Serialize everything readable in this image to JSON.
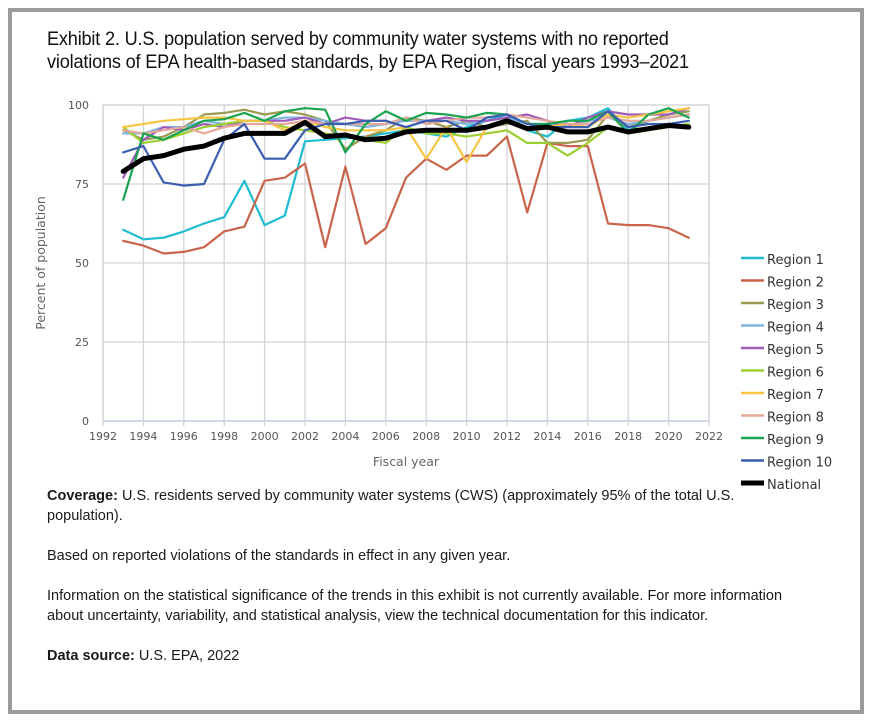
{
  "figure": {
    "title_line1": "Exhibit 2. U.S. population served by community water systems with no reported",
    "title_line2": "violations of EPA health-based standards, by EPA Region, fiscal years 1993–2021"
  },
  "notes": {
    "coverage_label": "Coverage:",
    "coverage_text": " U.S. residents served by community water systems (CWS) (approximately 95% of the total U.S. population).",
    "basis_text": "Based on reported violations of the standards in effect in any given year.",
    "significance_text": "Information on the statistical significance of the trends in this exhibit is not currently available. For more information about uncertainty, variability, and statistical analysis, view the technical documentation for this indicator.",
    "source_label": "Data source:",
    "source_text": " U.S. EPA, 2022"
  },
  "chart_data": {
    "type": "line",
    "title": "Exhibit 2. U.S. population served by community water systems with no reported violations of EPA health-based standards, by EPA Region, fiscal years 1993–2021",
    "xlabel": "Fiscal year",
    "ylabel": "Percent of population",
    "xlim": [
      1992,
      2022
    ],
    "ylim": [
      0,
      100
    ],
    "xticks": [
      1992,
      1994,
      1996,
      1998,
      2000,
      2002,
      2004,
      2006,
      2008,
      2010,
      2012,
      2014,
      2016,
      2018,
      2020,
      2022
    ],
    "yticks": [
      0,
      25,
      50,
      75,
      100
    ],
    "grid": true,
    "legend_position": "right",
    "x": [
      1993,
      1994,
      1995,
      1996,
      1997,
      1998,
      1999,
      2000,
      2001,
      2002,
      2003,
      2004,
      2005,
      2006,
      2007,
      2008,
      2009,
      2010,
      2011,
      2012,
      2013,
      2014,
      2015,
      2016,
      2017,
      2018,
      2019,
      2020,
      2021
    ],
    "series": [
      {
        "name": "Region 1",
        "color": "#1fbcd2",
        "values": [
          60.5,
          57.5,
          58,
          60,
          62.5,
          64.5,
          76,
          62,
          65,
          88.5,
          89,
          89.5,
          90,
          91,
          92,
          91,
          90,
          93,
          95,
          97,
          92,
          90,
          95,
          96,
          99,
          92,
          95,
          96,
          97
        ]
      },
      {
        "name": "Region 2",
        "color": "#c8644a",
        "values": [
          57,
          55.5,
          53,
          53.5,
          55,
          60,
          61.5,
          76,
          77,
          81.5,
          55,
          80.5,
          56,
          61,
          77,
          83,
          79.5,
          84,
          84,
          90,
          66,
          88,
          87,
          87,
          62.5,
          62,
          62,
          61,
          58
        ]
      },
      {
        "name": "Region 3",
        "color": "#9c9a50",
        "values": [
          92,
          89,
          90,
          93,
          97,
          97.5,
          98.5,
          97,
          98,
          97,
          95,
          86,
          90,
          92,
          96,
          95,
          93,
          95,
          93,
          94,
          95,
          88,
          88,
          89,
          97,
          93,
          95,
          97,
          98
        ]
      },
      {
        "name": "Region 4",
        "color": "#7fb5e2",
        "values": [
          91,
          91,
          93,
          93,
          95,
          94,
          95,
          95,
          96,
          96,
          95,
          94,
          93,
          94,
          95,
          95,
          95,
          94,
          95,
          96,
          94,
          94,
          93,
          95,
          96,
          94,
          95,
          96,
          97
        ]
      },
      {
        "name": "Region 5",
        "color": "#a05cb8",
        "values": [
          77,
          89,
          93,
          92,
          94,
          93,
          95,
          95,
          95,
          96,
          94,
          96,
          95,
          95,
          93,
          95,
          96,
          95,
          95,
          96,
          97,
          95,
          93,
          96,
          98,
          97,
          97,
          97,
          99
        ]
      },
      {
        "name": "Region 6",
        "color": "#9ccf2f",
        "values": [
          93,
          88,
          89,
          91,
          93,
          94,
          95,
          95,
          93,
          92,
          91,
          90,
          89,
          88,
          93,
          91,
          91,
          90,
          91,
          92,
          88,
          88,
          84,
          88,
          93,
          91,
          92,
          93,
          94
        ]
      },
      {
        "name": "Region 7",
        "color": "#f7c542",
        "values": [
          93,
          94,
          95,
          95.5,
          96,
          96,
          95,
          95,
          92,
          95,
          93,
          92,
          92,
          92,
          93,
          83,
          93,
          82,
          93,
          95,
          93,
          93,
          94,
          93,
          97,
          96,
          97,
          98,
          99
        ]
      },
      {
        "name": "Region 8",
        "color": "#e4a898",
        "values": [
          92,
          91,
          92,
          93,
          91,
          93,
          94,
          94,
          94,
          95,
          94,
          94,
          94,
          94,
          96,
          94,
          95,
          96,
          96,
          97,
          96,
          95,
          94,
          94,
          96,
          95,
          95,
          96,
          97
        ]
      },
      {
        "name": "Region 9",
        "color": "#1aa350",
        "values": [
          70,
          91,
          89,
          92,
          95,
          95.5,
          97.5,
          95,
          98,
          99,
          98.5,
          85,
          94,
          98,
          95,
          97.5,
          97,
          96,
          97.5,
          97,
          94,
          94,
          95,
          95,
          98,
          91,
          97,
          99,
          96
        ]
      },
      {
        "name": "Region 10",
        "color": "#3a5fb2",
        "values": [
          85,
          87,
          75.5,
          74.5,
          75,
          89,
          94,
          83,
          83,
          92,
          94,
          94,
          95,
          95,
          93,
          95,
          95,
          92,
          96,
          97,
          94,
          93,
          93,
          93,
          98,
          93,
          94,
          94,
          95
        ]
      },
      {
        "name": "National",
        "color": "#000000",
        "values": [
          79,
          83,
          84,
          86,
          87,
          89.5,
          91,
          91,
          91,
          94.5,
          90,
          90.5,
          89,
          89.5,
          91.5,
          92,
          92,
          92,
          93,
          95,
          92.5,
          93,
          91.5,
          91.5,
          93,
          91.5,
          92.5,
          93.5,
          93
        ]
      }
    ]
  }
}
